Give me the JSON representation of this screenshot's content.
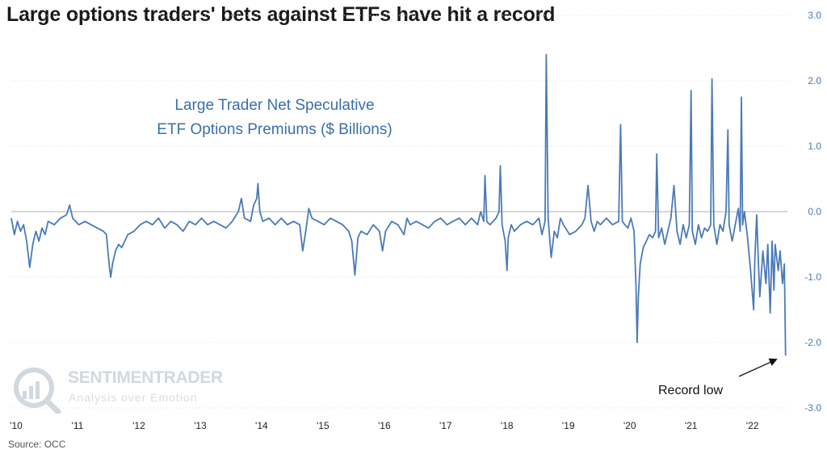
{
  "chart_data": {
    "type": "line",
    "title": "Large options traders' bets against ETFs have hit a record",
    "inset_title_lines": [
      "Large Trader Net Speculative",
      "ETF Options Premiums ($ Billions)"
    ],
    "source": "Source: OCC",
    "watermark": {
      "brand": "SENTIMENTRADER",
      "tagline": "Analysis over Emotion"
    },
    "annotation": {
      "text": "Record low",
      "arrow_target": {
        "x": 2022.62,
        "y": -2.2
      }
    },
    "x_tick_labels": [
      "'10",
      "'11",
      "'12",
      "'13",
      "'14",
      "'15",
      "'16",
      "'17",
      "'18",
      "'19",
      "'20",
      "'21",
      "'22"
    ],
    "x_tick_values": [
      2010,
      2011,
      2012,
      2013,
      2014,
      2015,
      2016,
      2017,
      2018,
      2019,
      2020,
      2021,
      2022
    ],
    "xlim": [
      2010,
      2022.65
    ],
    "y_tick_labels": [
      "3.0",
      "2.0",
      "1.0",
      "0.0",
      "-1.0",
      "-2.0",
      "-3.0"
    ],
    "y_tick_values": [
      3,
      2,
      1,
      0,
      -1,
      -2,
      -3
    ],
    "ylim": [
      -3.0,
      3.0
    ],
    "y_axis_side": "right",
    "grid": "horizontal dotted",
    "series": [
      {
        "color": "#4a7ab8",
        "points": [
          [
            2010.0,
            -0.1
          ],
          [
            2010.05,
            -0.35
          ],
          [
            2010.1,
            -0.15
          ],
          [
            2010.15,
            -0.3
          ],
          [
            2010.2,
            -0.2
          ],
          [
            2010.25,
            -0.45
          ],
          [
            2010.3,
            -0.85
          ],
          [
            2010.35,
            -0.5
          ],
          [
            2010.4,
            -0.3
          ],
          [
            2010.45,
            -0.45
          ],
          [
            2010.5,
            -0.25
          ],
          [
            2010.55,
            -0.35
          ],
          [
            2010.6,
            -0.15
          ],
          [
            2010.7,
            -0.2
          ],
          [
            2010.8,
            -0.1
          ],
          [
            2010.9,
            -0.05
          ],
          [
            2010.95,
            0.1
          ],
          [
            2011.0,
            -0.1
          ],
          [
            2011.1,
            -0.2
          ],
          [
            2011.2,
            -0.15
          ],
          [
            2011.3,
            -0.2
          ],
          [
            2011.4,
            -0.25
          ],
          [
            2011.5,
            -0.3
          ],
          [
            2011.55,
            -0.35
          ],
          [
            2011.6,
            -0.85
          ],
          [
            2011.62,
            -1.0
          ],
          [
            2011.65,
            -0.8
          ],
          [
            2011.7,
            -0.6
          ],
          [
            2011.75,
            -0.5
          ],
          [
            2011.8,
            -0.55
          ],
          [
            2011.9,
            -0.35
          ],
          [
            2012.0,
            -0.3
          ],
          [
            2012.1,
            -0.2
          ],
          [
            2012.2,
            -0.15
          ],
          [
            2012.3,
            -0.2
          ],
          [
            2012.4,
            -0.1
          ],
          [
            2012.5,
            -0.25
          ],
          [
            2012.6,
            -0.15
          ],
          [
            2012.7,
            -0.2
          ],
          [
            2012.8,
            -0.3
          ],
          [
            2012.9,
            -0.15
          ],
          [
            2013.0,
            -0.2
          ],
          [
            2013.1,
            -0.1
          ],
          [
            2013.2,
            -0.2
          ],
          [
            2013.3,
            -0.15
          ],
          [
            2013.4,
            -0.2
          ],
          [
            2013.5,
            -0.25
          ],
          [
            2013.6,
            -0.15
          ],
          [
            2013.7,
            0.0
          ],
          [
            2013.75,
            0.2
          ],
          [
            2013.8,
            -0.1
          ],
          [
            2013.9,
            -0.15
          ],
          [
            2013.95,
            0.1
          ],
          [
            2014.0,
            0.2
          ],
          [
            2014.02,
            0.43
          ],
          [
            2014.05,
            0.0
          ],
          [
            2014.1,
            -0.15
          ],
          [
            2014.2,
            -0.1
          ],
          [
            2014.3,
            -0.2
          ],
          [
            2014.4,
            -0.1
          ],
          [
            2014.5,
            -0.2
          ],
          [
            2014.6,
            -0.15
          ],
          [
            2014.7,
            -0.2
          ],
          [
            2014.75,
            -0.6
          ],
          [
            2014.8,
            -0.3
          ],
          [
            2014.85,
            0.05
          ],
          [
            2014.9,
            -0.1
          ],
          [
            2015.0,
            -0.15
          ],
          [
            2015.1,
            -0.2
          ],
          [
            2015.2,
            -0.1
          ],
          [
            2015.3,
            -0.15
          ],
          [
            2015.4,
            -0.2
          ],
          [
            2015.5,
            -0.3
          ],
          [
            2015.55,
            -0.45
          ],
          [
            2015.6,
            -0.97
          ],
          [
            2015.65,
            -0.4
          ],
          [
            2015.7,
            -0.3
          ],
          [
            2015.8,
            -0.35
          ],
          [
            2015.9,
            -0.2
          ],
          [
            2016.0,
            -0.3
          ],
          [
            2016.05,
            -0.6
          ],
          [
            2016.1,
            -0.3
          ],
          [
            2016.2,
            -0.15
          ],
          [
            2016.3,
            -0.2
          ],
          [
            2016.4,
            -0.35
          ],
          [
            2016.45,
            -0.1
          ],
          [
            2016.5,
            -0.2
          ],
          [
            2016.6,
            -0.15
          ],
          [
            2016.7,
            -0.2
          ],
          [
            2016.8,
            -0.25
          ],
          [
            2016.9,
            -0.15
          ],
          [
            2017.0,
            -0.1
          ],
          [
            2017.1,
            -0.2
          ],
          [
            2017.2,
            -0.15
          ],
          [
            2017.3,
            -0.1
          ],
          [
            2017.4,
            -0.2
          ],
          [
            2017.5,
            -0.1
          ],
          [
            2017.6,
            -0.2
          ],
          [
            2017.65,
            0.0
          ],
          [
            2017.7,
            -0.15
          ],
          [
            2017.72,
            0.55
          ],
          [
            2017.75,
            -0.15
          ],
          [
            2017.8,
            -0.2
          ],
          [
            2017.9,
            -0.1
          ],
          [
            2017.95,
            0.0
          ],
          [
            2017.97,
            0.7
          ],
          [
            2018.0,
            -0.2
          ],
          [
            2018.05,
            -0.45
          ],
          [
            2018.08,
            -0.9
          ],
          [
            2018.1,
            -0.4
          ],
          [
            2018.15,
            -0.2
          ],
          [
            2018.2,
            -0.3
          ],
          [
            2018.3,
            -0.2
          ],
          [
            2018.4,
            -0.15
          ],
          [
            2018.5,
            -0.2
          ],
          [
            2018.6,
            -0.1
          ],
          [
            2018.65,
            -0.35
          ],
          [
            2018.7,
            -0.15
          ],
          [
            2018.72,
            2.4
          ],
          [
            2018.75,
            -0.1
          ],
          [
            2018.8,
            -0.7
          ],
          [
            2018.85,
            -0.3
          ],
          [
            2018.9,
            -0.4
          ],
          [
            2018.95,
            -0.1
          ],
          [
            2019.0,
            -0.2
          ],
          [
            2019.1,
            -0.35
          ],
          [
            2019.2,
            -0.3
          ],
          [
            2019.3,
            -0.2
          ],
          [
            2019.35,
            -0.1
          ],
          [
            2019.4,
            0.4
          ],
          [
            2019.45,
            -0.15
          ],
          [
            2019.5,
            -0.3
          ],
          [
            2019.55,
            -0.15
          ],
          [
            2019.6,
            -0.2
          ],
          [
            2019.7,
            -0.1
          ],
          [
            2019.8,
            -0.2
          ],
          [
            2019.9,
            -0.15
          ],
          [
            2019.93,
            1.33
          ],
          [
            2019.96,
            -0.15
          ],
          [
            2020.0,
            -0.2
          ],
          [
            2020.05,
            -0.25
          ],
          [
            2020.1,
            -0.1
          ],
          [
            2020.15,
            -0.3
          ],
          [
            2020.18,
            -1.1
          ],
          [
            2020.2,
            -2.0
          ],
          [
            2020.22,
            -1.3
          ],
          [
            2020.25,
            -0.8
          ],
          [
            2020.3,
            -0.55
          ],
          [
            2020.35,
            -0.45
          ],
          [
            2020.4,
            -0.35
          ],
          [
            2020.45,
            -0.4
          ],
          [
            2020.5,
            -0.3
          ],
          [
            2020.52,
            0.88
          ],
          [
            2020.55,
            -0.4
          ],
          [
            2020.6,
            -0.25
          ],
          [
            2020.65,
            -0.5
          ],
          [
            2020.7,
            -0.3
          ],
          [
            2020.75,
            -0.1
          ],
          [
            2020.8,
            0.4
          ],
          [
            2020.85,
            -0.3
          ],
          [
            2020.9,
            -0.5
          ],
          [
            2020.95,
            -0.2
          ],
          [
            2021.0,
            -0.4
          ],
          [
            2021.05,
            -0.2
          ],
          [
            2021.08,
            1.85
          ],
          [
            2021.1,
            -0.3
          ],
          [
            2021.15,
            -0.5
          ],
          [
            2021.2,
            -0.2
          ],
          [
            2021.25,
            -0.4
          ],
          [
            2021.3,
            -0.25
          ],
          [
            2021.35,
            -0.3
          ],
          [
            2021.4,
            -0.2
          ],
          [
            2021.42,
            2.03
          ],
          [
            2021.45,
            -0.2
          ],
          [
            2021.5,
            -0.5
          ],
          [
            2021.55,
            -0.2
          ],
          [
            2021.6,
            -0.3
          ],
          [
            2021.65,
            0.0
          ],
          [
            2021.68,
            1.25
          ],
          [
            2021.7,
            -0.2
          ],
          [
            2021.75,
            -0.45
          ],
          [
            2021.8,
            -0.2
          ],
          [
            2021.85,
            0.05
          ],
          [
            2021.88,
            -0.3
          ],
          [
            2021.9,
            1.75
          ],
          [
            2021.92,
            -0.2
          ],
          [
            2021.95,
            0.0
          ],
          [
            2022.0,
            -0.4
          ],
          [
            2022.05,
            -0.9
          ],
          [
            2022.1,
            -1.5
          ],
          [
            2022.12,
            -0.7
          ],
          [
            2022.15,
            -0.05
          ],
          [
            2022.17,
            -0.6
          ],
          [
            2022.2,
            -1.3
          ],
          [
            2022.25,
            -0.6
          ],
          [
            2022.3,
            -1.1
          ],
          [
            2022.33,
            -0.5
          ],
          [
            2022.37,
            -1.55
          ],
          [
            2022.4,
            -0.45
          ],
          [
            2022.43,
            -1.2
          ],
          [
            2022.45,
            -0.5
          ],
          [
            2022.5,
            -0.9
          ],
          [
            2022.53,
            -0.6
          ],
          [
            2022.57,
            -1.1
          ],
          [
            2022.6,
            -0.8
          ],
          [
            2022.62,
            -2.2
          ]
        ]
      }
    ]
  }
}
